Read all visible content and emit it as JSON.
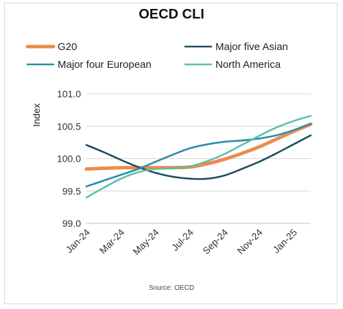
{
  "chart_data": {
    "type": "line",
    "title": "OECD CLI",
    "ylabel": "Index",
    "xlabel": "",
    "source": "Source: OECD",
    "ylim": [
      99.0,
      101.0
    ],
    "yticks": [
      "99.0",
      "99.5",
      "100.0",
      "100.5",
      "101.0"
    ],
    "x": [
      "Jan-24",
      "Feb-24",
      "Mar-24",
      "Apr-24",
      "May-24",
      "Jun-24",
      "Jul-24",
      "Aug-24",
      "Sep-24",
      "Oct-24",
      "Nov-24",
      "Dec-24",
      "Jan-25",
      "Feb-25"
    ],
    "xtick_labels": [
      "Jan-24",
      "Mar-24",
      "May-24",
      "Jul-24",
      "Sep-24",
      "Nov-24",
      "Jan-25"
    ],
    "grid": "horizontal",
    "legend_position": "top",
    "series": [
      {
        "name": "G20",
        "color": "#ED8B4B",
        "width": "thick",
        "values": [
          99.84,
          99.85,
          99.86,
          99.86,
          99.86,
          99.86,
          99.87,
          99.92,
          99.99,
          100.08,
          100.18,
          100.3,
          100.42,
          100.53
        ]
      },
      {
        "name": "Major five Asian",
        "color": "#1E4E5F",
        "width": "normal",
        "values": [
          100.21,
          100.1,
          99.98,
          99.87,
          99.78,
          99.72,
          99.69,
          99.69,
          99.74,
          99.84,
          99.95,
          100.08,
          100.22,
          100.36
        ]
      },
      {
        "name": "Major four European",
        "color": "#2A8CA8",
        "width": "normal",
        "values": [
          99.57,
          99.66,
          99.75,
          99.84,
          99.95,
          100.06,
          100.16,
          100.22,
          100.26,
          100.28,
          100.31,
          100.36,
          100.44,
          100.54
        ]
      },
      {
        "name": "North America",
        "color": "#5CBFA5",
        "width": "normal",
        "values": [
          99.4,
          99.55,
          99.69,
          99.79,
          99.84,
          99.85,
          99.88,
          99.96,
          100.07,
          100.21,
          100.35,
          100.48,
          100.58,
          100.66
        ]
      }
    ]
  }
}
